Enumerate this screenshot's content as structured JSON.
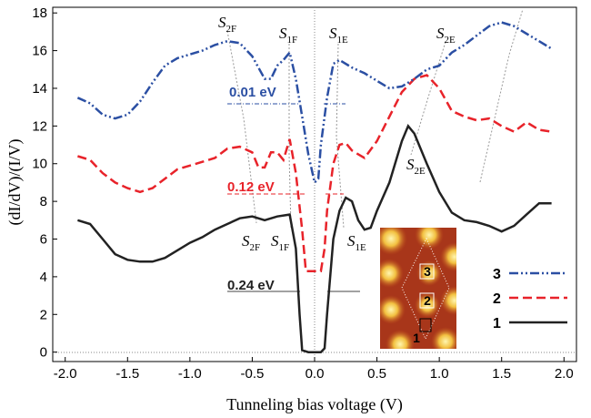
{
  "chart_data": {
    "type": "line",
    "xlabel": "Tunneling bias voltage (V)",
    "ylabel": "(dI/dV)/(I/V)",
    "xlim": [
      -2.1,
      2.1
    ],
    "ylim": [
      -0.5,
      18.3
    ],
    "xticks": [
      {
        "value": -2,
        "label": "-2.0"
      },
      {
        "value": -1.5,
        "label": "-1.5"
      },
      {
        "value": -1,
        "label": "-1.0"
      },
      {
        "value": -0.5,
        "label": "-0.5"
      },
      {
        "value": 0,
        "label": "0.0"
      },
      {
        "value": 0.5,
        "label": "0.5"
      },
      {
        "value": 1,
        "label": "1.0"
      },
      {
        "value": 1.5,
        "label": "1.5"
      },
      {
        "value": 2,
        "label": "2.0"
      }
    ],
    "yticks": [
      0,
      2,
      4,
      6,
      8,
      10,
      12,
      14,
      16,
      18
    ],
    "legend": "right",
    "series": [
      {
        "name": "1",
        "color": "#222222",
        "style": "solid",
        "x": [
          -1.9,
          -1.8,
          -1.7,
          -1.6,
          -1.5,
          -1.4,
          -1.3,
          -1.2,
          -1.1,
          -1.0,
          -0.9,
          -0.8,
          -0.7,
          -0.6,
          -0.5,
          -0.4,
          -0.3,
          -0.2,
          -0.15,
          -0.12,
          -0.1,
          -0.05,
          0,
          0.05,
          0.08,
          0.1,
          0.15,
          0.2,
          0.25,
          0.3,
          0.35,
          0.4,
          0.45,
          0.5,
          0.6,
          0.7,
          0.75,
          0.8,
          0.9,
          1.0,
          1.1,
          1.2,
          1.3,
          1.4,
          1.5,
          1.6,
          1.7,
          1.8,
          1.9
        ],
        "values": [
          7.0,
          6.8,
          6.0,
          5.2,
          4.9,
          4.8,
          4.8,
          5.0,
          5.4,
          5.8,
          6.1,
          6.5,
          6.8,
          7.1,
          7.2,
          7.0,
          7.2,
          7.3,
          5.5,
          2.0,
          0.1,
          0,
          0,
          0,
          0.2,
          2.0,
          6.0,
          7.5,
          8.2,
          8.0,
          7.0,
          6.5,
          6.6,
          7.5,
          9.0,
          11.2,
          12.0,
          11.6,
          10.0,
          8.5,
          7.4,
          7.0,
          6.9,
          6.7,
          6.4,
          6.7,
          7.3,
          7.9,
          7.9
        ]
      },
      {
        "name": "2",
        "color": "#e8232a",
        "style": "dashed",
        "x": [
          -1.9,
          -1.8,
          -1.7,
          -1.6,
          -1.5,
          -1.4,
          -1.3,
          -1.2,
          -1.1,
          -1.0,
          -0.9,
          -0.8,
          -0.7,
          -0.6,
          -0.5,
          -0.45,
          -0.4,
          -0.35,
          -0.3,
          -0.25,
          -0.2,
          -0.15,
          -0.1,
          -0.07,
          0,
          0.05,
          0.08,
          0.1,
          0.15,
          0.2,
          0.25,
          0.3,
          0.4,
          0.5,
          0.6,
          0.7,
          0.8,
          0.9,
          1.0,
          1.1,
          1.2,
          1.3,
          1.4,
          1.5,
          1.6,
          1.7,
          1.8,
          1.9
        ],
        "values": [
          10.4,
          10.2,
          9.5,
          9.0,
          8.7,
          8.5,
          8.7,
          9.2,
          9.7,
          9.9,
          10.1,
          10.3,
          10.8,
          10.9,
          10.6,
          9.8,
          9.8,
          10.6,
          10.6,
          10.2,
          11.3,
          9.5,
          6.5,
          4.3,
          4.3,
          4.3,
          5.5,
          7.5,
          10.0,
          11.0,
          11.1,
          10.7,
          10.3,
          11.2,
          12.5,
          13.8,
          14.5,
          14.7,
          14.0,
          12.8,
          12.5,
          12.3,
          12.4,
          12.0,
          11.7,
          12.2,
          11.8,
          11.7
        ]
      },
      {
        "name": "3",
        "color": "#2b4fa3",
        "style": "dash-dot-dot",
        "x": [
          -1.9,
          -1.8,
          -1.7,
          -1.6,
          -1.5,
          -1.4,
          -1.3,
          -1.2,
          -1.1,
          -1.0,
          -0.9,
          -0.8,
          -0.7,
          -0.6,
          -0.5,
          -0.4,
          -0.35,
          -0.3,
          -0.25,
          -0.2,
          -0.15,
          -0.1,
          -0.05,
          0,
          0.03,
          0.05,
          0.1,
          0.15,
          0.2,
          0.3,
          0.4,
          0.5,
          0.6,
          0.7,
          0.8,
          0.9,
          1.0,
          1.1,
          1.2,
          1.3,
          1.4,
          1.5,
          1.6,
          1.7,
          1.8,
          1.9
        ],
        "values": [
          13.5,
          13.2,
          12.6,
          12.4,
          12.6,
          13.3,
          14.3,
          15.2,
          15.6,
          15.8,
          16.0,
          16.3,
          16.5,
          16.4,
          15.7,
          14.5,
          14.5,
          15.2,
          15.5,
          15.9,
          14.5,
          12.5,
          10.5,
          9.0,
          9.2,
          11.0,
          13.5,
          15.3,
          15.5,
          15.1,
          14.8,
          14.4,
          14.0,
          14.1,
          14.5,
          15.0,
          15.2,
          15.9,
          16.3,
          16.8,
          17.3,
          17.5,
          17.3,
          16.9,
          16.5,
          16.1
        ]
      }
    ],
    "gap_labels": [
      {
        "text": "0.01 eV",
        "color": "#2b4fa3"
      },
      {
        "text": "0.12 eV",
        "color": "#e8232a"
      },
      {
        "text": "0.24 eV",
        "color": "#222222"
      }
    ],
    "state_labels": [
      {
        "symbol": "S",
        "subscript": "2F"
      },
      {
        "symbol": "S",
        "subscript": "1F"
      },
      {
        "symbol": "S",
        "subscript": "1E"
      },
      {
        "symbol": "S",
        "subscript": "2E"
      },
      {
        "symbol": "S",
        "subscript": "2E"
      },
      {
        "symbol": "S",
        "subscript": "2F"
      },
      {
        "symbol": "S",
        "subscript": "1F"
      },
      {
        "symbol": "S",
        "subscript": "1E"
      }
    ]
  }
}
